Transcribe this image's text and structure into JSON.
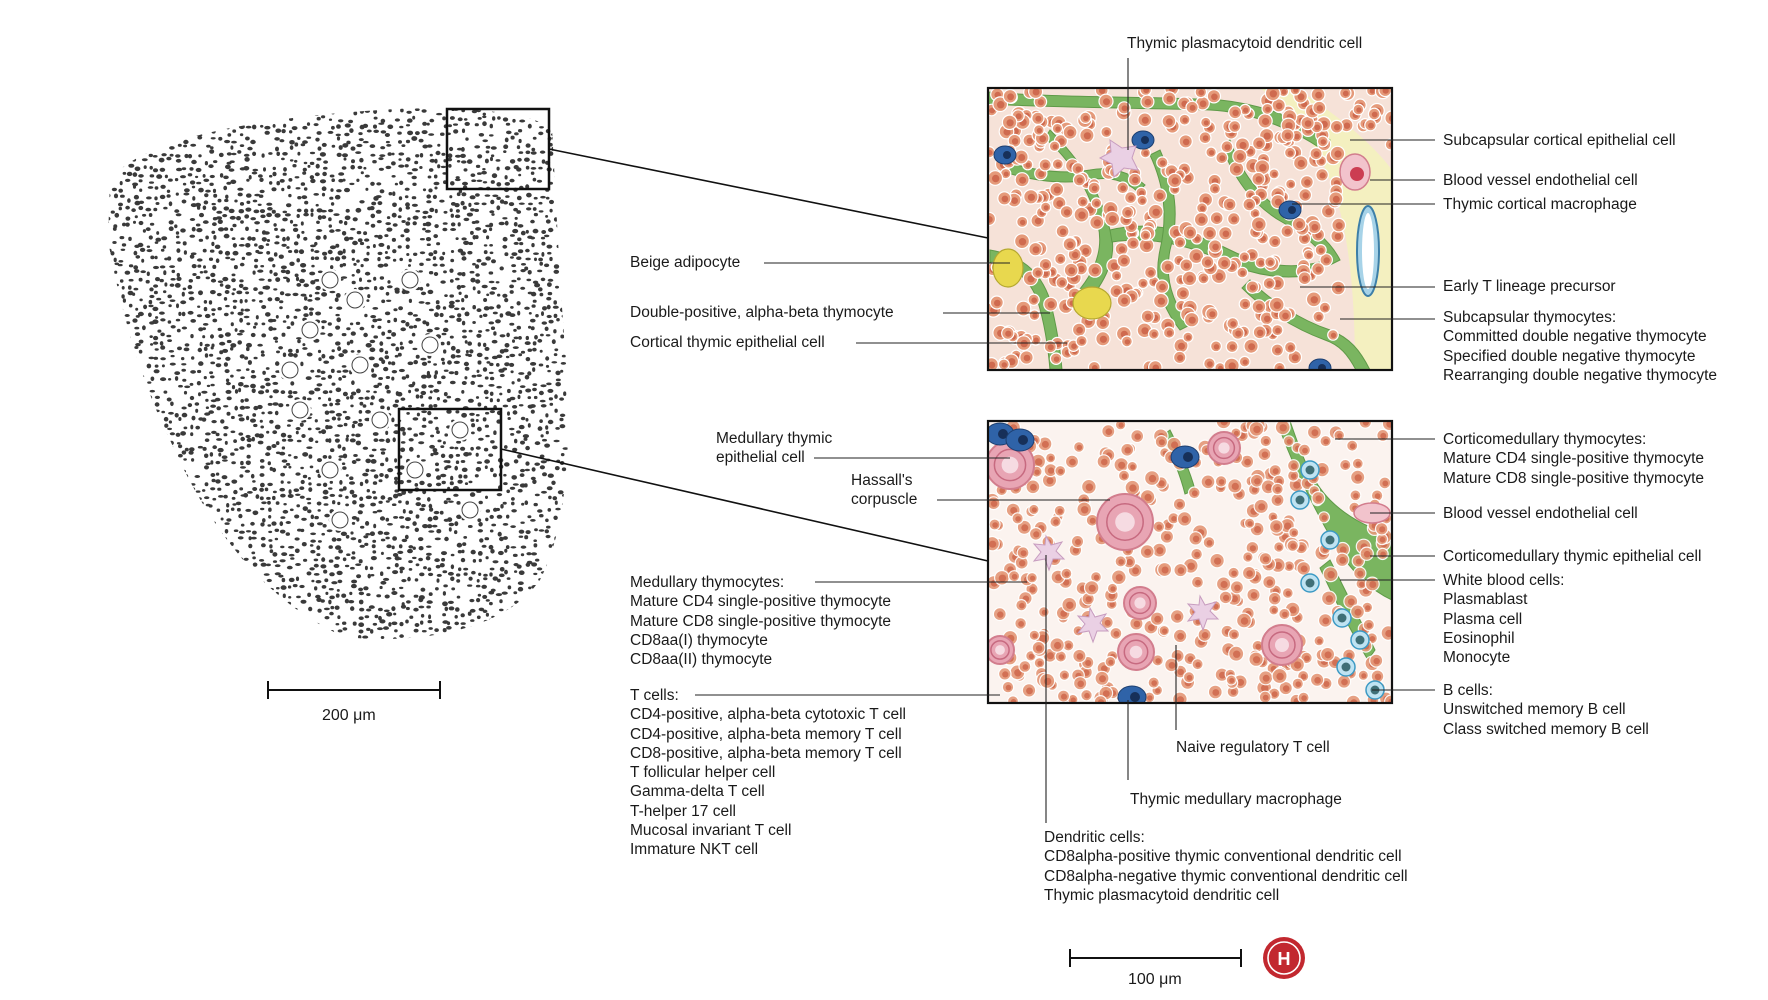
{
  "scale_bars": {
    "overview": "200 μm",
    "detail": "100 μm"
  },
  "logo": {
    "letter": "H",
    "color": "#c2282f"
  },
  "colors": {
    "thymocyte": "#e59a7a",
    "thymocyte_nucleus": "#cf6a4f",
    "epithelium": "#7ab560",
    "adipocyte": "#e8d84e",
    "macrophage": "#2f63a8",
    "hassall": "#e8a5b4",
    "capsule": "#f4f0c0"
  },
  "labels": {
    "top_center": {
      "lines": [
        "Thymic plasmacytoid dendritic cell"
      ]
    },
    "beige": {
      "lines": [
        "Beige adipocyte"
      ]
    },
    "dp": {
      "lines": [
        "Double-positive, alpha-beta thymocyte"
      ]
    },
    "ctec": {
      "lines": [
        "Cortical thymic epithelial cell"
      ]
    },
    "subcap_ep": {
      "lines": [
        "Subcapsular cortical epithelial cell"
      ]
    },
    "bv1": {
      "lines": [
        "Blood vessel endothelial cell"
      ]
    },
    "cort_mac": {
      "lines": [
        "Thymic cortical macrophage"
      ]
    },
    "etp": {
      "lines": [
        "Early T lineage precursor"
      ]
    },
    "subcap_thy": {
      "lines": [
        "Subcapsular thymocytes:",
        "Committed double negative thymocyte",
        "Specified double negative thymocyte",
        "Rearranging double negative thymocyte"
      ]
    },
    "mtec": {
      "lines": [
        "Medullary thymic",
        "epithelial cell"
      ]
    },
    "hassall": {
      "lines": [
        "Hassall's",
        "corpuscle"
      ]
    },
    "med_thy": {
      "lines": [
        "Medullary thymocytes:",
        "Mature CD4 single-positive thymocyte",
        "Mature CD8 single-positive thymocyte",
        "CD8aa(I) thymocyte",
        "CD8aa(II) thymocyte"
      ]
    },
    "tcells": {
      "lines": [
        "T cells:",
        "CD4-positive, alpha-beta cytotoxic T cell",
        "CD4-positive, alpha-beta memory T cell",
        "CD8-positive, alpha-beta memory T cell",
        "T follicular helper cell",
        "Gamma-delta T cell",
        "T-helper 17 cell",
        "Mucosal invariant T cell",
        "Immature NKT cell"
      ]
    },
    "cm_thy": {
      "lines": [
        "Corticomedullary thymocytes:",
        "Mature CD4 single-positive thymocyte",
        "Mature CD8 single-positive thymocyte"
      ]
    },
    "bv2": {
      "lines": [
        "Blood vessel endothelial cell"
      ]
    },
    "cm_tec": {
      "lines": [
        "Corticomedullary thymic epithelial cell"
      ]
    },
    "wbc": {
      "lines": [
        "White blood cells:",
        "Plasmablast",
        "Plasma cell",
        "Eosinophil",
        "Monocyte"
      ]
    },
    "bcells": {
      "lines": [
        "B cells:",
        "Unswitched memory B cell",
        "Class switched memory B cell"
      ]
    },
    "naive_treg": {
      "lines": [
        "Naive regulatory T cell"
      ]
    },
    "med_mac": {
      "lines": [
        "Thymic medullary macrophage"
      ]
    },
    "dendritic": {
      "lines": [
        "Dendritic cells:",
        "CD8alpha-positive thymic conventional dendritic cell",
        "CD8alpha-negative thymic conventional dendritic cell",
        "Thymic plasmacytoid dendritic cell"
      ]
    }
  }
}
